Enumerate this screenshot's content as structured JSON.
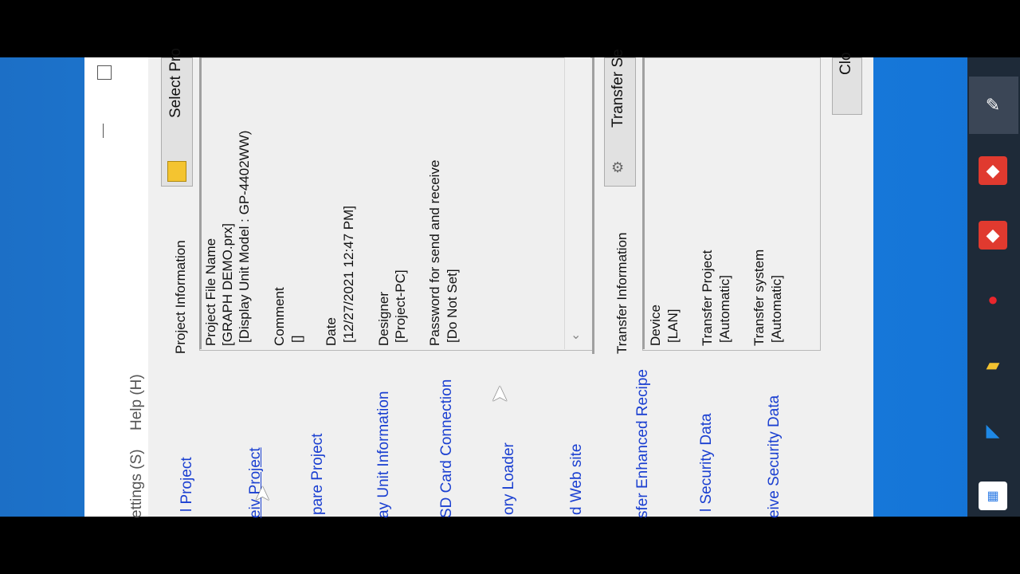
{
  "menu": {
    "settings": "ettings (S)",
    "help": "Help (H)"
  },
  "links": [
    "l Project",
    "eiv Project",
    "pare Project",
    "ay Unit Information",
    "SD Card Connection",
    "ory Loader",
    "d Web site",
    "sfer Enhanced Recipe",
    "l Security Data",
    "eive Security Data"
  ],
  "project_info": {
    "title": "Project Information",
    "select_button": "Select Pro",
    "fields": [
      {
        "label": "Project File Name",
        "values": [
          "[GRAPH DEMO.prx]",
          "[Display Unit Model : GP-4402WW)"
        ]
      },
      {
        "label": "Comment",
        "values": [
          "[]"
        ]
      },
      {
        "label": "Date",
        "values": [
          "[12/27/2021 12:47 PM]"
        ]
      },
      {
        "label": "Designer",
        "values": [
          "[Project-PC]"
        ]
      },
      {
        "label": "Password for send and receive",
        "values": [
          "[Do Not Set]"
        ]
      }
    ]
  },
  "transfer_info": {
    "title": "Transfer Information",
    "settings_button": "Transfer Se",
    "fields": [
      {
        "label": "Device",
        "values": [
          "[LAN]"
        ]
      },
      {
        "label": "Transfer Project",
        "values": [
          "[Automatic]"
        ]
      },
      {
        "label": "Transfer system",
        "values": [
          "[Automatic]"
        ]
      }
    ]
  },
  "close_button": "Clo",
  "taskbar_icons": [
    "pen-app-icon",
    "anydesk-icon",
    "anydesk-icon-2",
    "red-app-icon",
    "file-explorer-icon",
    "visual-studio-icon",
    "microsoft-store-icon"
  ]
}
